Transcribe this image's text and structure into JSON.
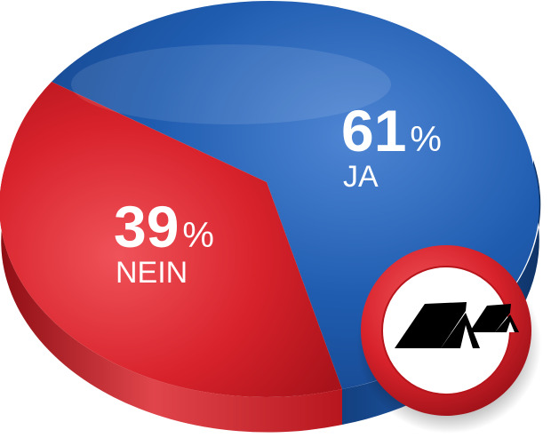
{
  "chart_data": {
    "type": "pie",
    "title": "",
    "slices": [
      {
        "label": "JA",
        "value": 61,
        "display_value": "61",
        "unit": "%",
        "color": "#1f5cb0"
      },
      {
        "label": "NEIN",
        "value": 39,
        "display_value": "39",
        "unit": "%",
        "color": "#d8222b"
      }
    ],
    "style": "3d-pie"
  },
  "badge": {
    "icon": "tents-icon",
    "ring_color": "#d8222b",
    "fill_color": "#ffffff"
  }
}
